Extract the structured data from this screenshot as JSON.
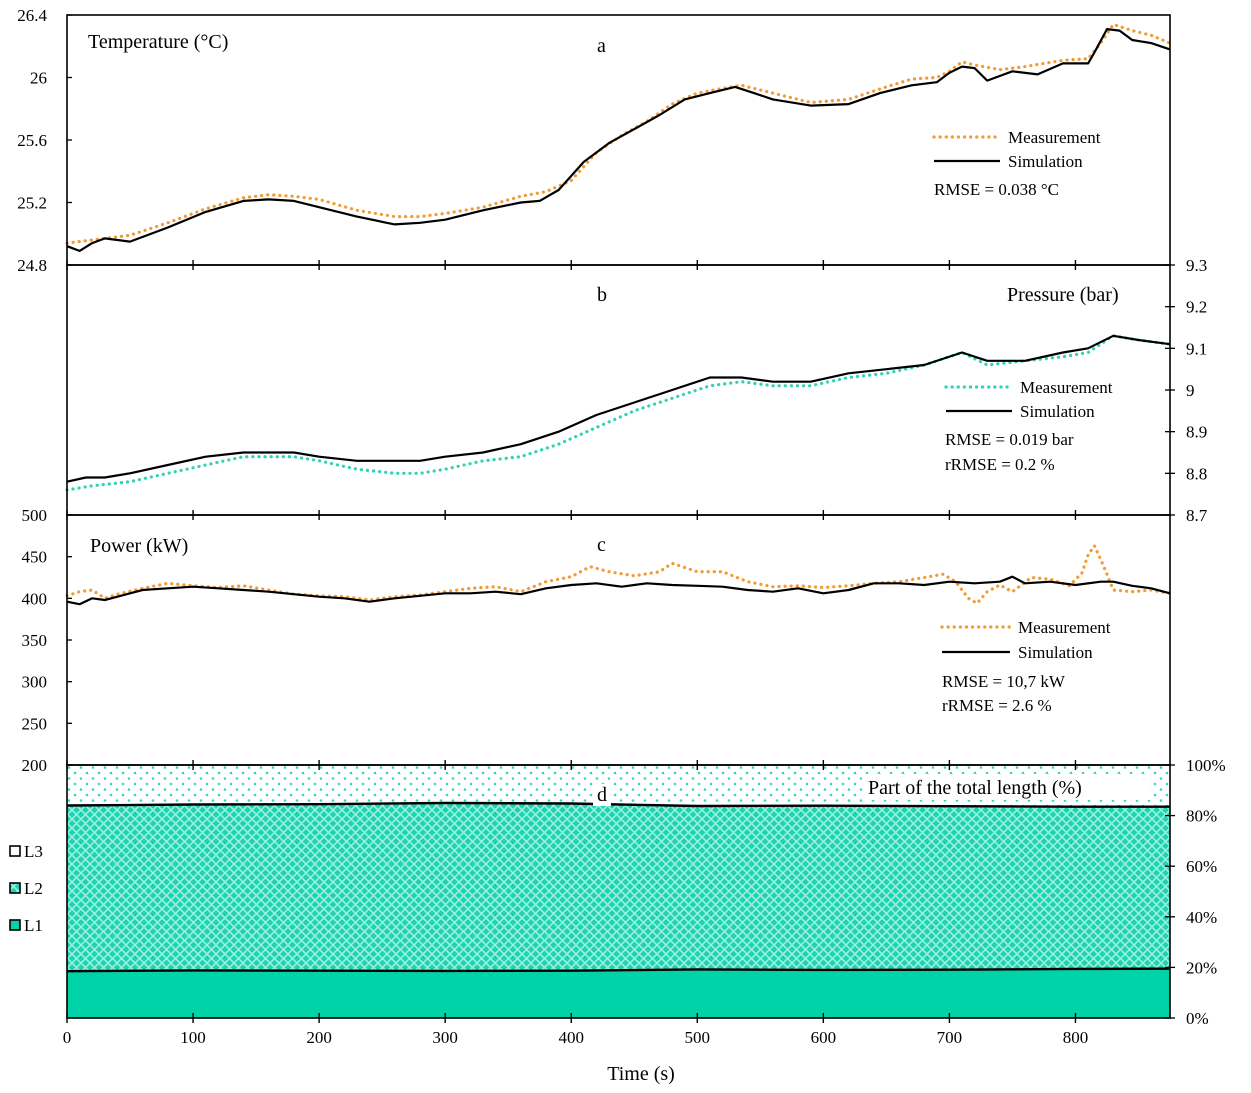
{
  "colors": {
    "measurement_temp_power": "#f39a32",
    "measurement_pressure": "#2fd3b2",
    "simulation": "#000000",
    "l1_fill": "#00d3a8",
    "l2_fill": "#3fdcbc",
    "l3_dots": "#38d6b8"
  },
  "x_axis": {
    "label": "Time (s)",
    "range": [
      0,
      875
    ],
    "ticks": [
      "0",
      "100",
      "200",
      "300",
      "400",
      "500",
      "600",
      "700",
      "800"
    ]
  },
  "chart_data": [
    {
      "id": "a",
      "type": "line",
      "panel_letter": "a",
      "title": "Temperature (°C)",
      "ylim": [
        24.8,
        26.4
      ],
      "yticks": [
        "24.8",
        "25.2",
        "25.6",
        "26",
        "26.4"
      ],
      "y_axis_side": "left",
      "legend": {
        "measurement": "Measurement",
        "simulation": "Simulation"
      },
      "stats": [
        "RMSE = 0.038 °C"
      ],
      "series": [
        {
          "name": "Measurement",
          "style": "dotted",
          "color_key": "measurement_temp_power",
          "x": [
            0,
            20,
            50,
            80,
            110,
            140,
            160,
            180,
            200,
            230,
            260,
            280,
            300,
            330,
            360,
            380,
            400,
            420,
            440,
            460,
            480,
            500,
            520,
            535,
            560,
            590,
            620,
            650,
            670,
            690,
            700,
            710,
            720,
            740,
            760,
            790,
            810,
            820,
            830,
            845,
            860,
            875
          ],
          "y": [
            24.94,
            24.96,
            24.99,
            25.07,
            25.16,
            25.23,
            25.25,
            25.24,
            25.22,
            25.15,
            25.11,
            25.11,
            25.13,
            25.17,
            25.24,
            25.27,
            25.34,
            25.52,
            25.63,
            25.72,
            25.83,
            25.9,
            25.93,
            25.95,
            25.9,
            25.84,
            25.86,
            25.94,
            25.99,
            26.0,
            26.04,
            26.1,
            26.08,
            26.05,
            26.07,
            26.11,
            26.12,
            26.22,
            26.34,
            26.3,
            26.27,
            26.22
          ]
        },
        {
          "name": "Simulation",
          "style": "solid",
          "color_key": "simulation",
          "x": [
            0,
            10,
            20,
            30,
            50,
            80,
            110,
            140,
            160,
            180,
            200,
            230,
            260,
            280,
            300,
            330,
            360,
            375,
            390,
            410,
            430,
            450,
            470,
            490,
            510,
            530,
            545,
            560,
            590,
            620,
            645,
            670,
            690,
            700,
            710,
            720,
            730,
            750,
            770,
            790,
            810,
            815,
            825,
            835,
            845,
            860,
            875
          ],
          "y": [
            24.92,
            24.89,
            24.94,
            24.97,
            24.95,
            25.04,
            25.14,
            25.21,
            25.22,
            25.21,
            25.17,
            25.11,
            25.06,
            25.07,
            25.09,
            25.15,
            25.2,
            25.21,
            25.28,
            25.46,
            25.58,
            25.67,
            25.76,
            25.86,
            25.9,
            25.94,
            25.9,
            25.86,
            25.82,
            25.83,
            25.9,
            25.95,
            25.97,
            26.03,
            26.07,
            26.06,
            25.98,
            26.04,
            26.02,
            26.09,
            26.09,
            26.16,
            26.31,
            26.3,
            26.24,
            26.22,
            26.18
          ]
        }
      ]
    },
    {
      "id": "b",
      "type": "line",
      "panel_letter": "b",
      "title": "Pressure (bar)",
      "ylim": [
        8.7,
        9.3
      ],
      "yticks": [
        "8.7",
        "8.8",
        "8.9",
        "9",
        "9.1",
        "9.2",
        "9.3"
      ],
      "y_axis_side": "right",
      "legend": {
        "measurement": "Measurement",
        "simulation": "Simulation"
      },
      "stats": [
        "RMSE = 0.019 bar",
        "rRMSE = 0.2 %"
      ],
      "series": [
        {
          "name": "Measurement",
          "style": "dotted",
          "color_key": "measurement_pressure",
          "x": [
            0,
            20,
            50,
            80,
            110,
            140,
            160,
            180,
            200,
            230,
            260,
            280,
            300,
            330,
            360,
            390,
            420,
            450,
            480,
            510,
            535,
            560,
            590,
            620,
            650,
            680,
            710,
            730,
            760,
            790,
            810,
            830,
            850,
            875
          ],
          "y": [
            8.76,
            8.77,
            8.78,
            8.8,
            8.82,
            8.84,
            8.84,
            8.84,
            8.83,
            8.81,
            8.8,
            8.8,
            8.81,
            8.83,
            8.84,
            8.87,
            8.91,
            8.95,
            8.98,
            9.01,
            9.02,
            9.01,
            9.01,
            9.03,
            9.04,
            9.06,
            9.09,
            9.06,
            9.07,
            9.08,
            9.09,
            9.13,
            9.12,
            9.11
          ]
        },
        {
          "name": "Simulation",
          "style": "solid",
          "color_key": "simulation",
          "x": [
            0,
            15,
            30,
            50,
            80,
            110,
            140,
            160,
            180,
            200,
            230,
            260,
            280,
            300,
            330,
            360,
            390,
            420,
            450,
            480,
            510,
            535,
            560,
            590,
            620,
            650,
            680,
            710,
            730,
            760,
            790,
            810,
            830,
            850,
            875
          ],
          "y": [
            8.78,
            8.79,
            8.79,
            8.8,
            8.82,
            8.84,
            8.85,
            8.85,
            8.85,
            8.84,
            8.83,
            8.83,
            8.83,
            8.84,
            8.85,
            8.87,
            8.9,
            8.94,
            8.97,
            9.0,
            9.03,
            9.03,
            9.02,
            9.02,
            9.04,
            9.05,
            9.06,
            9.09,
            9.07,
            9.07,
            9.09,
            9.1,
            9.13,
            9.12,
            9.11
          ]
        }
      ]
    },
    {
      "id": "c",
      "type": "line",
      "panel_letter": "c",
      "title": "Power (kW)",
      "ylim": [
        200,
        500
      ],
      "yticks": [
        "200",
        "250",
        "300",
        "350",
        "400",
        "450",
        "500"
      ],
      "y_axis_side": "left",
      "legend": {
        "measurement": "Measurement",
        "simulation": "Simulation"
      },
      "stats": [
        "RMSE = 10,7 kW",
        "rRMSE = 2.6 %"
      ],
      "series": [
        {
          "name": "Measurement",
          "style": "dotted",
          "color_key": "measurement_temp_power",
          "x": [
            0,
            10,
            20,
            30,
            40,
            60,
            80,
            100,
            120,
            140,
            160,
            180,
            200,
            220,
            240,
            260,
            280,
            300,
            320,
            340,
            360,
            380,
            400,
            415,
            430,
            450,
            470,
            480,
            500,
            520,
            540,
            560,
            580,
            600,
            620,
            640,
            660,
            680,
            695,
            705,
            715,
            722,
            730,
            740,
            750,
            765,
            780,
            795,
            805,
            810,
            815,
            822,
            830,
            845,
            860,
            875
          ],
          "y": [
            403,
            408,
            410,
            400,
            405,
            412,
            418,
            415,
            413,
            415,
            410,
            405,
            403,
            402,
            398,
            402,
            404,
            408,
            412,
            414,
            408,
            420,
            426,
            438,
            432,
            427,
            432,
            442,
            432,
            432,
            420,
            414,
            415,
            413,
            415,
            418,
            420,
            425,
            429,
            420,
            400,
            394,
            408,
            416,
            408,
            425,
            423,
            415,
            430,
            452,
            463,
            440,
            410,
            408,
            410,
            406
          ]
        },
        {
          "name": "Simulation",
          "style": "solid",
          "color_key": "simulation",
          "x": [
            0,
            10,
            20,
            30,
            40,
            60,
            80,
            100,
            120,
            140,
            160,
            180,
            200,
            220,
            240,
            260,
            280,
            300,
            320,
            340,
            360,
            380,
            400,
            420,
            440,
            460,
            480,
            500,
            520,
            540,
            560,
            580,
            600,
            620,
            640,
            660,
            680,
            700,
            720,
            740,
            750,
            760,
            780,
            800,
            820,
            830,
            845,
            860,
            875
          ],
          "y": [
            396,
            393,
            400,
            398,
            402,
            410,
            412,
            414,
            412,
            410,
            408,
            405,
            402,
            400,
            396,
            400,
            403,
            406,
            406,
            408,
            405,
            412,
            416,
            418,
            414,
            418,
            416,
            415,
            414,
            410,
            408,
            412,
            406,
            410,
            418,
            418,
            416,
            420,
            418,
            420,
            426,
            418,
            420,
            416,
            420,
            420,
            415,
            412,
            406
          ]
        }
      ]
    },
    {
      "id": "d",
      "type": "area",
      "stacked": true,
      "panel_letter": "d",
      "title": "Part of the total length (%)",
      "ylim": [
        0,
        100
      ],
      "yticks": [
        "0%",
        "20%",
        "40%",
        "60%",
        "80%",
        "100%"
      ],
      "y_axis_side": "right",
      "x": [
        0,
        100,
        200,
        300,
        400,
        500,
        600,
        700,
        800,
        875
      ],
      "series": [
        {
          "name": "L1",
          "color_key": "l1_fill",
          "pattern": "solid",
          "values": [
            18.5,
            18.8,
            18.7,
            18.6,
            18.7,
            19.2,
            19.0,
            19.1,
            19.4,
            19.5
          ]
        },
        {
          "name": "L2",
          "color_key": "l2_fill",
          "pattern": "crosshatch",
          "values": [
            65.5,
            65.6,
            65.8,
            66.4,
            66.1,
            64.6,
            64.9,
            64.6,
            64.1,
            64.0
          ]
        },
        {
          "name": "L3",
          "color_key": "l3_dots",
          "pattern": "dots",
          "values": [
            16.0,
            15.6,
            15.5,
            15.0,
            15.2,
            16.2,
            16.1,
            16.3,
            16.5,
            16.5
          ]
        }
      ],
      "legend": [
        "L3",
        "L2",
        "L1"
      ]
    }
  ]
}
